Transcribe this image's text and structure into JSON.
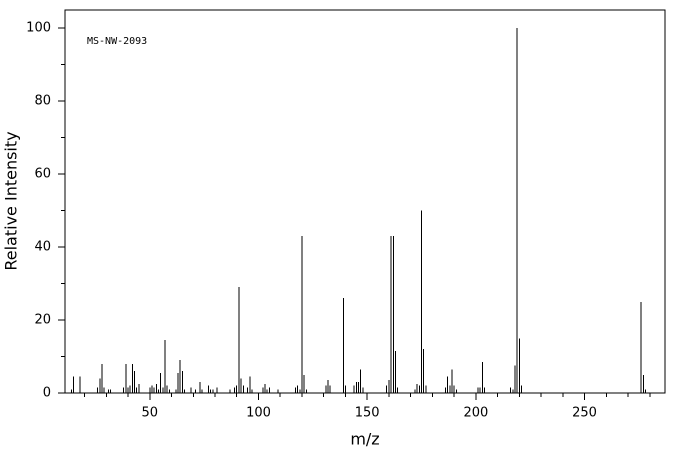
{
  "chart_data": {
    "type": "stick",
    "annotation": "MS-NW-2093",
    "x_label": "m/z",
    "y_label": "Relative Intensity",
    "color": "#000000",
    "xlim": [
      11,
      287
    ],
    "ylim": [
      0,
      105
    ],
    "xticks": [
      50,
      100,
      150,
      200,
      250
    ],
    "xminorticks": [
      20,
      30,
      40,
      60,
      70,
      80,
      90,
      110,
      120,
      130,
      140,
      160,
      170,
      180,
      190,
      210,
      220,
      230,
      240,
      260,
      270,
      280
    ],
    "yticks": [
      0,
      20,
      40,
      60,
      80,
      100
    ],
    "yminorticks": [
      10,
      30,
      50,
      70,
      90
    ],
    "x": [
      14,
      15,
      18,
      26,
      27,
      28,
      29,
      31,
      32,
      38,
      39,
      40,
      41,
      42,
      43,
      44,
      45,
      50,
      51,
      52,
      53,
      54,
      55,
      56,
      57,
      58,
      59,
      62,
      63,
      64,
      65,
      66,
      69,
      71,
      73,
      74,
      77,
      78,
      79,
      81,
      87,
      89,
      90,
      91,
      92,
      93,
      95,
      96,
      97,
      102,
      103,
      104,
      105,
      109,
      117,
      118,
      119,
      120,
      121,
      122,
      131,
      132,
      133,
      139,
      140,
      144,
      145,
      146,
      147,
      148,
      159,
      160,
      161,
      162,
      163,
      164,
      172,
      173,
      174,
      175,
      176,
      177,
      186,
      187,
      188,
      189,
      190,
      191,
      201,
      202,
      203,
      204,
      216,
      217,
      218,
      219,
      220,
      221,
      276,
      277,
      278
    ],
    "values": [
      1,
      4.5,
      4.5,
      1.5,
      4,
      8,
      1.5,
      1,
      1,
      1.5,
      8,
      1.5,
      2,
      8,
      6,
      1.5,
      2.5,
      1.5,
      2,
      1.5,
      2.5,
      1,
      5.5,
      1.5,
      14.5,
      2,
      1,
      1,
      5.5,
      9,
      6,
      1,
      1.5,
      1,
      3,
      1,
      2,
      1,
      1,
      1.5,
      1,
      1.5,
      2,
      29,
      4,
      2,
      1.5,
      4.5,
      1,
      1.5,
      2.5,
      1,
      1.5,
      1,
      1.5,
      2,
      1,
      43,
      5,
      1,
      2,
      3.5,
      2,
      26,
      2,
      2,
      3,
      3,
      6.5,
      1.5,
      2,
      3.5,
      43,
      43,
      11.5,
      1.5,
      1,
      2.5,
      2,
      50,
      12,
      2,
      1.5,
      4.5,
      2,
      6.5,
      2,
      1,
      1.5,
      1.5,
      8.5,
      1.5,
      1.5,
      1,
      7.5,
      100,
      15,
      2,
      25,
      5,
      1
    ]
  }
}
